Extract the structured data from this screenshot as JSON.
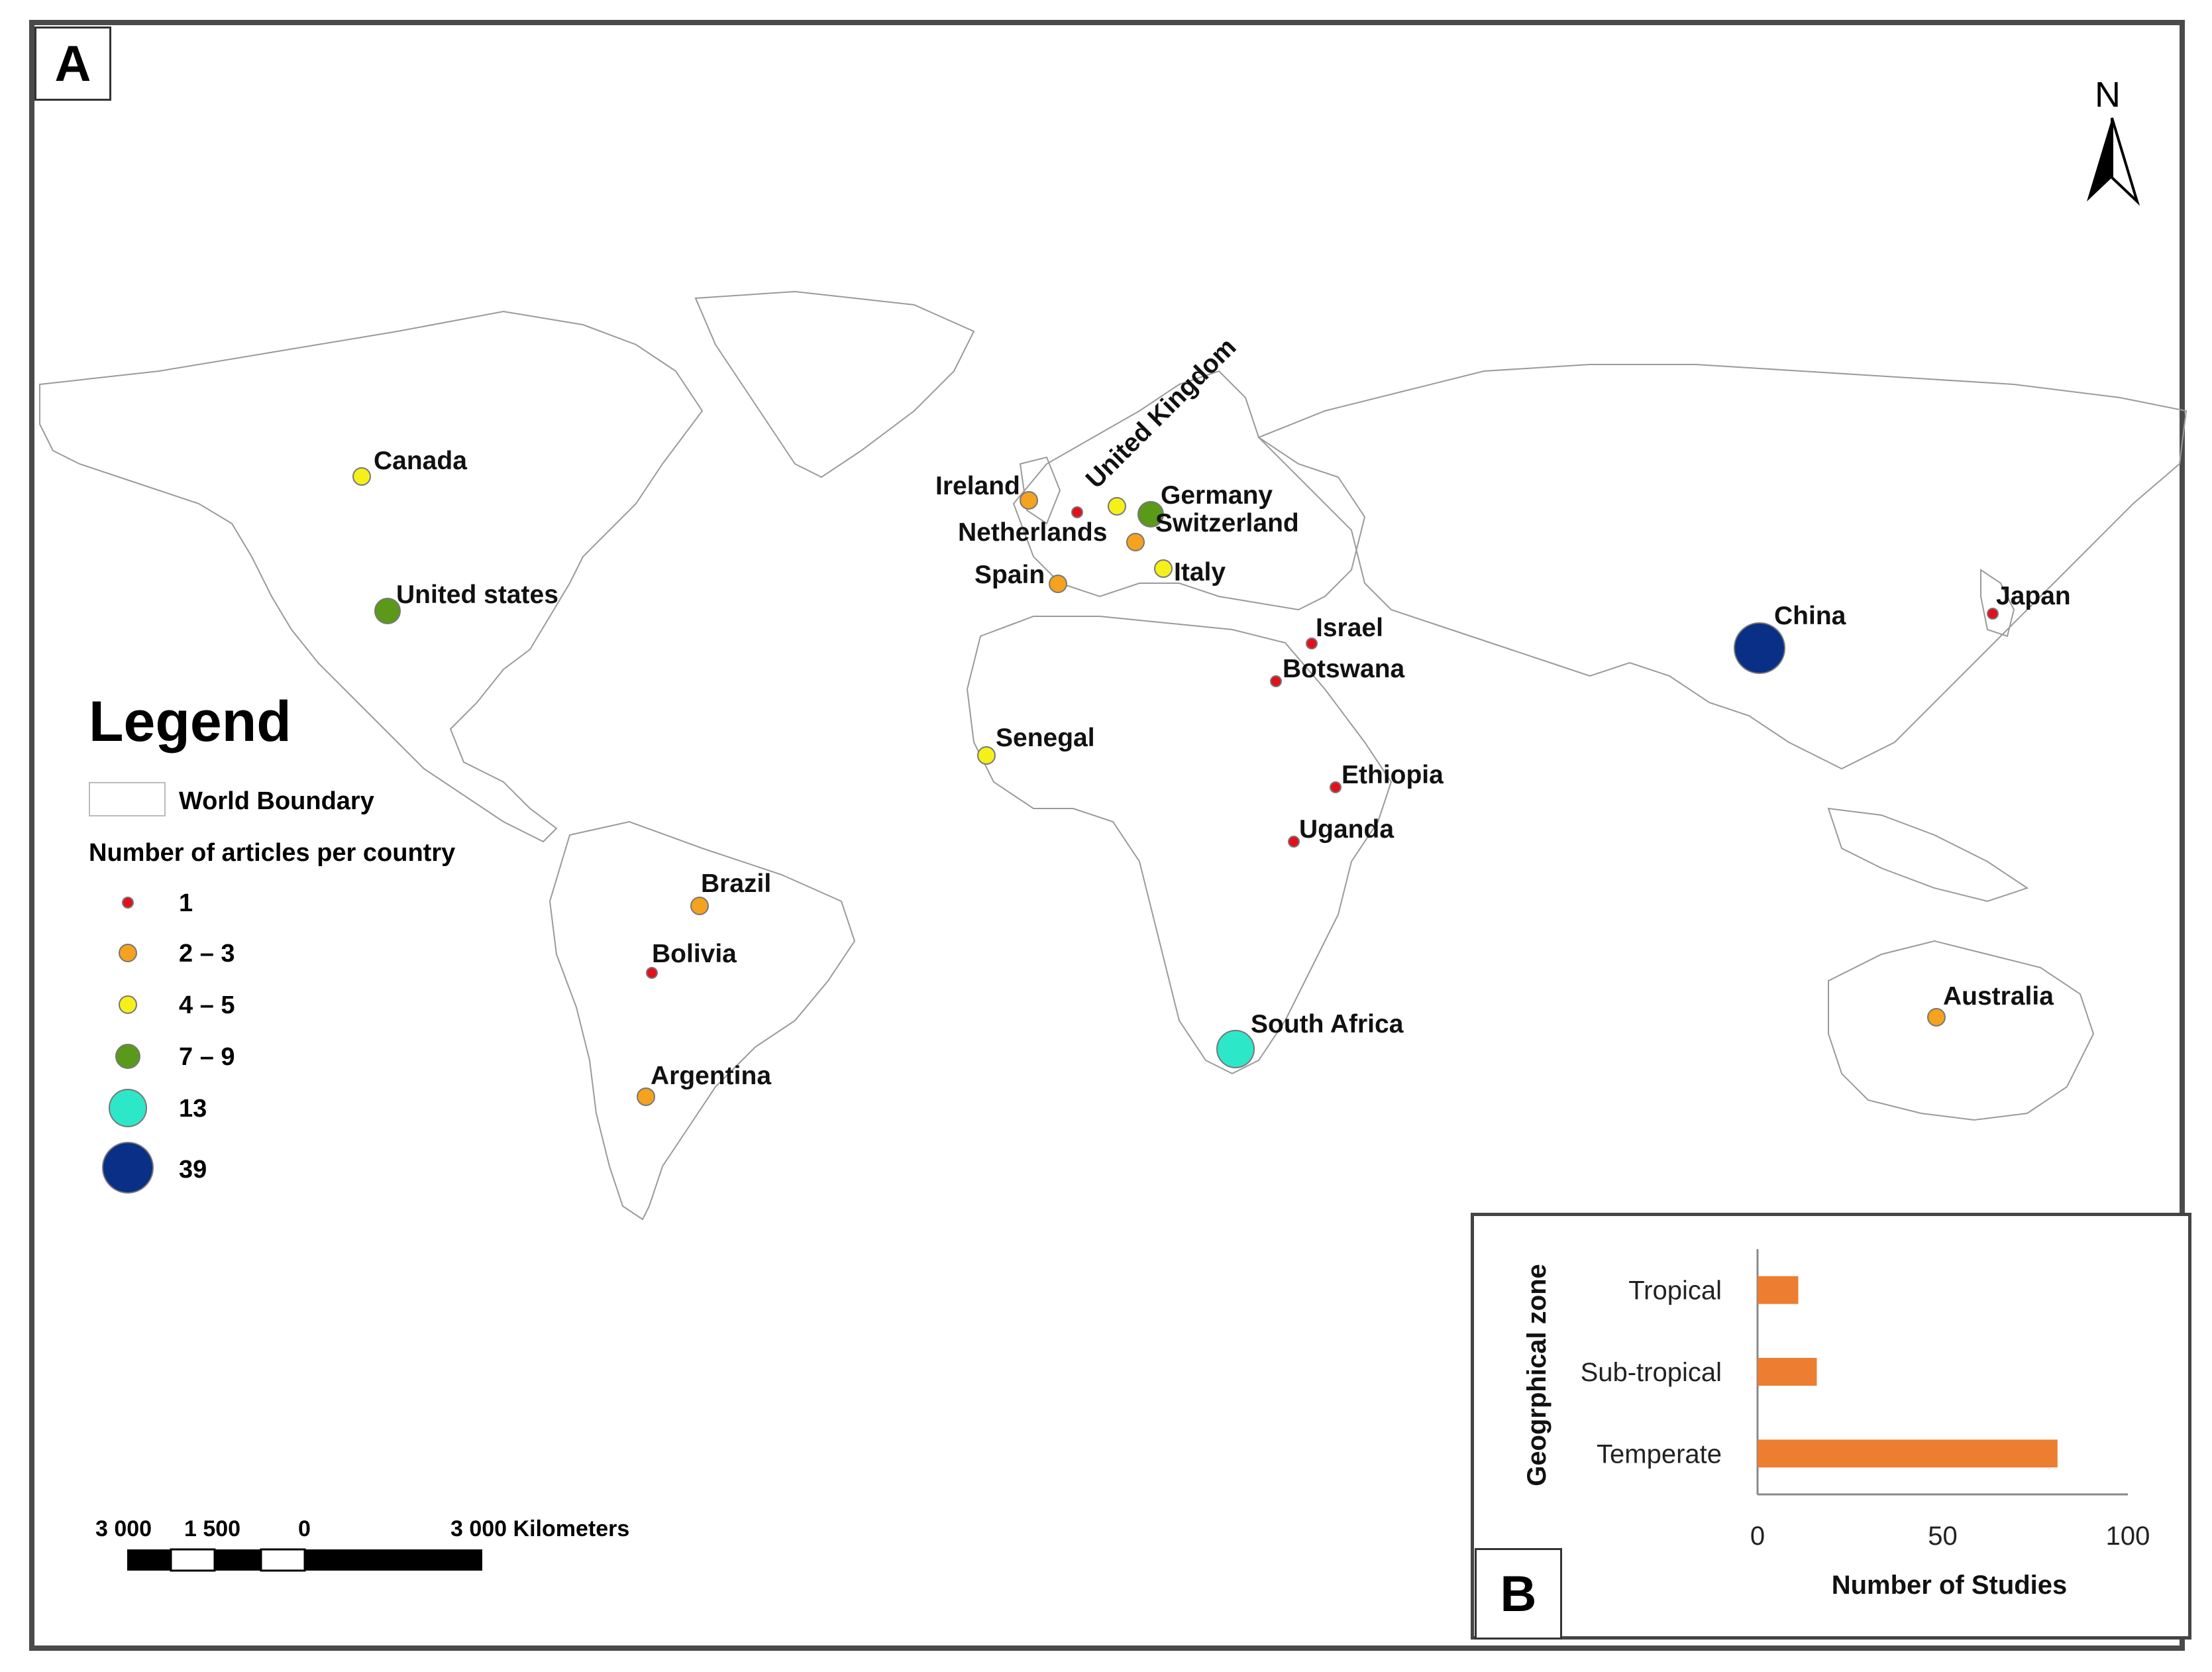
{
  "panel_a_label": "A",
  "panel_b_label": "B",
  "north_label": "N",
  "legend": {
    "title": "Legend",
    "boundary_label": "World Boundary",
    "articles_title": "Number of articles per country",
    "classes": [
      {
        "label": "1",
        "color": "#e3101b"
      },
      {
        "label": "2 – 3",
        "color": "#f4a21f"
      },
      {
        "label": "4 – 5",
        "color": "#f6f01a"
      },
      {
        "label": "7 – 9",
        "color": "#5a9a18"
      },
      {
        "label": "13",
        "color": "#2de8c8"
      },
      {
        "label": "39",
        "color": "#0a2f86"
      }
    ]
  },
  "scale_bar": {
    "labels": [
      "3 000",
      "1 500",
      "0",
      "3 000 Kilometers"
    ]
  },
  "countries": [
    {
      "name": "Canada",
      "articles": "4 – 5"
    },
    {
      "name": "United states",
      "articles": "7 – 9"
    },
    {
      "name": "Ireland",
      "articles": "2 – 3"
    },
    {
      "name": "United Kingdom",
      "articles": "4 – 5"
    },
    {
      "name": "Netherlands",
      "articles": "2 – 3"
    },
    {
      "name": "Germany",
      "articles": "7 – 9"
    },
    {
      "name": "Switzerland",
      "articles": "1"
    },
    {
      "name": "Spain",
      "articles": "2 – 3"
    },
    {
      "name": "Italy",
      "articles": "4 – 5"
    },
    {
      "name": "Israel",
      "articles": "1"
    },
    {
      "name": "Botswana",
      "articles": "1"
    },
    {
      "name": "Senegal",
      "articles": "4 – 5"
    },
    {
      "name": "Ethiopia",
      "articles": "1"
    },
    {
      "name": "Uganda",
      "articles": "1"
    },
    {
      "name": "Brazil",
      "articles": "2 – 3"
    },
    {
      "name": "Bolivia",
      "articles": "1"
    },
    {
      "name": "Argentina",
      "articles": "2 – 3"
    },
    {
      "name": "South Africa",
      "articles": "13"
    },
    {
      "name": "China",
      "articles": "39"
    },
    {
      "name": "Japan",
      "articles": "1"
    },
    {
      "name": "Australia",
      "articles": "2 – 3"
    }
  ],
  "chart_data": {
    "type": "bar",
    "orientation": "horizontal",
    "categories": [
      "Tropical",
      "Sub-tropical",
      "Temperate"
    ],
    "values": [
      11,
      16,
      81
    ],
    "xlabel": "Number of Studies",
    "ylabel": "Geogrphical zone",
    "xlim": [
      0,
      100
    ],
    "xticks": [
      0,
      50,
      100
    ],
    "bar_color": "#ed7d31"
  }
}
